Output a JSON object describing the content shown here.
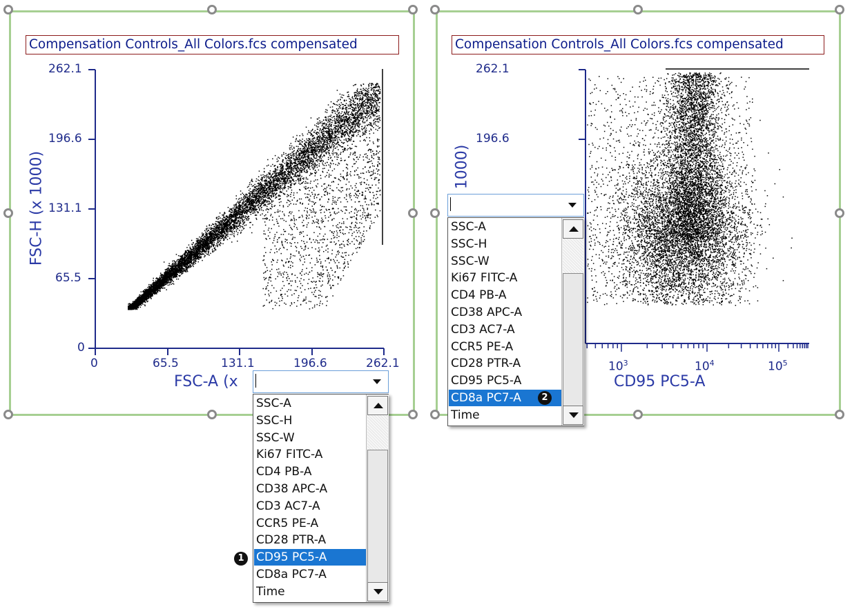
{
  "plot1": {
    "title": "Compensation Controls_All Colors.fcs compensated",
    "y_ticks": [
      "262.1",
      "196.6",
      "131.1",
      "65.5",
      "0"
    ],
    "x_ticks": [
      "0",
      "65.5",
      "131.1",
      "196.6",
      "262.1"
    ],
    "y_label": "FSC-H (x 1000)",
    "x_label": "FSC-A (x"
  },
  "plot2": {
    "title": "Compensation Controls_All Colors.fcs compensated",
    "y_ticks": [
      "262.1",
      "196.6"
    ],
    "y_label": "1000)",
    "x_ticks": [
      "10",
      "10",
      "10"
    ],
    "x_tick_exponents": [
      "3",
      "4",
      "5"
    ],
    "x_label": "CD95 PC5-A"
  },
  "dropdown1": {
    "value": "",
    "items": [
      "SSC-A",
      "SSC-H",
      "SSC-W",
      "Ki67 FITC-A",
      "CD4 PB-A",
      "CD38 APC-A",
      "CD3 AC7-A",
      "CCR5 PE-A",
      "CD28 PTR-A",
      "CD95 PC5-A",
      "CD8a PC7-A",
      "Time"
    ],
    "selected_index": 9,
    "badge": "1"
  },
  "dropdown2": {
    "value": "",
    "items": [
      "SSC-A",
      "SSC-H",
      "SSC-W",
      "Ki67 FITC-A",
      "CD4 PB-A",
      "CD38 APC-A",
      "CD3 AC7-A",
      "CCR5 PE-A",
      "CD28 PTR-A",
      "CD95 PC5-A",
      "CD8a PC7-A",
      "Time"
    ],
    "selected_index": 10,
    "badge": "2"
  },
  "colors": {
    "frame": "#a6cf92",
    "axis": "#1e2a8a",
    "selection": "#1a76d2",
    "title_border": "#8b1a1a",
    "dots": "#000000"
  }
}
